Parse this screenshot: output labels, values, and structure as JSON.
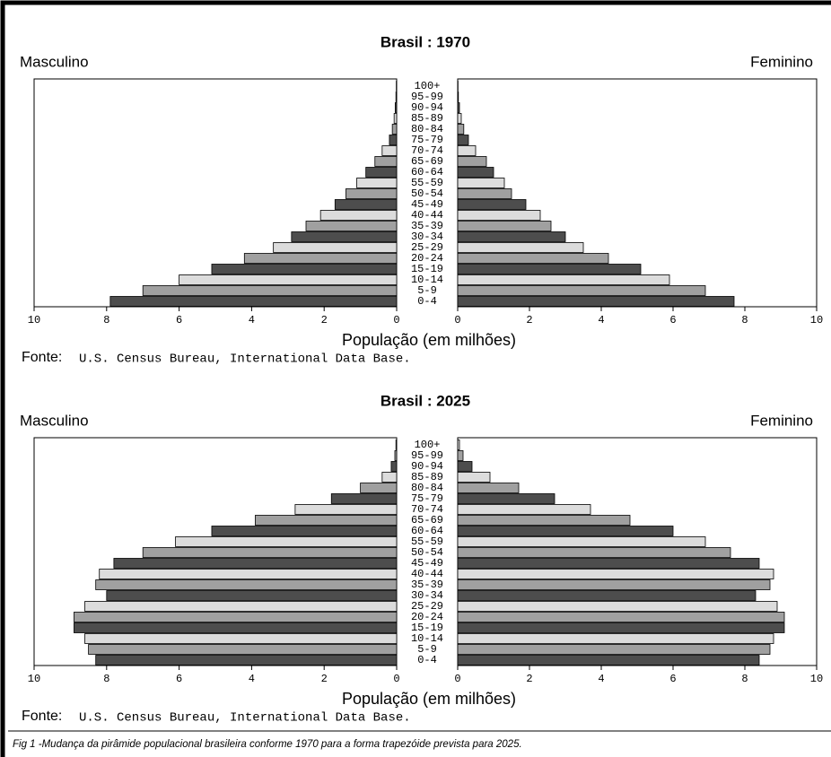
{
  "chart_data": [
    {
      "type": "pyramid",
      "title": "Brasil : 1970",
      "categories": [
        "0-4",
        "5-9",
        "10-14",
        "15-19",
        "20-24",
        "25-29",
        "30-34",
        "35-39",
        "40-44",
        "45-49",
        "50-54",
        "55-59",
        "60-64",
        "65-69",
        "70-74",
        "75-79",
        "80-84",
        "85-89",
        "90-94",
        "95-99",
        "100+"
      ],
      "series": [
        {
          "name": "Masculino",
          "side": "left",
          "values": [
            7.9,
            7.0,
            6.0,
            5.1,
            4.2,
            3.4,
            2.9,
            2.5,
            2.1,
            1.7,
            1.4,
            1.1,
            0.85,
            0.6,
            0.4,
            0.2,
            0.12,
            0.07,
            0.04,
            0.02,
            0.01
          ]
        },
        {
          "name": "Feminino",
          "side": "right",
          "values": [
            7.7,
            6.9,
            5.9,
            5.1,
            4.2,
            3.5,
            3.0,
            2.6,
            2.3,
            1.9,
            1.5,
            1.3,
            1.0,
            0.8,
            0.5,
            0.3,
            0.17,
            0.1,
            0.05,
            0.02,
            0.01
          ]
        }
      ],
      "bar_colors": [
        "#4d4d4d",
        "#a0a0a0",
        "#dcdcdc"
      ],
      "xlim": [
        0,
        10
      ],
      "xticks": [
        0,
        2,
        4,
        6,
        8,
        10
      ],
      "xlabel": "População (em milhões)",
      "source_label": "Fonte:",
      "source": "U.S. Census Bureau, International Data Base."
    },
    {
      "type": "pyramid",
      "title": "Brasil : 2025",
      "categories": [
        "0-4",
        "5-9",
        "10-14",
        "15-19",
        "20-24",
        "25-29",
        "30-34",
        "35-39",
        "40-44",
        "45-49",
        "50-54",
        "55-59",
        "60-64",
        "65-69",
        "70-74",
        "75-79",
        "80-84",
        "85-89",
        "90-94",
        "95-99",
        "100+"
      ],
      "series": [
        {
          "name": "Masculino",
          "side": "left",
          "values": [
            8.3,
            8.5,
            8.6,
            8.9,
            8.9,
            8.6,
            8.0,
            8.3,
            8.2,
            7.8,
            7.0,
            6.1,
            5.1,
            3.9,
            2.8,
            1.8,
            1.0,
            0.4,
            0.15,
            0.05,
            0.02
          ]
        },
        {
          "name": "Feminino",
          "side": "right",
          "values": [
            8.4,
            8.7,
            8.8,
            9.1,
            9.1,
            8.9,
            8.3,
            8.7,
            8.8,
            8.4,
            7.6,
            6.9,
            6.0,
            4.8,
            3.7,
            2.7,
            1.7,
            0.9,
            0.4,
            0.15,
            0.05
          ]
        }
      ],
      "bar_colors": [
        "#4d4d4d",
        "#a0a0a0",
        "#dcdcdc"
      ],
      "xlim": [
        0,
        10
      ],
      "xticks": [
        0,
        2,
        4,
        6,
        8,
        10
      ],
      "xlabel": "População (em milhões)",
      "source_label": "Fonte:",
      "source": "U.S. Census Bureau, International Data Base."
    }
  ],
  "caption": "Fig 1 -Mudança da pirâmide populacional brasileira conforme 1970 para a forma trapezóide prevista para 2025."
}
